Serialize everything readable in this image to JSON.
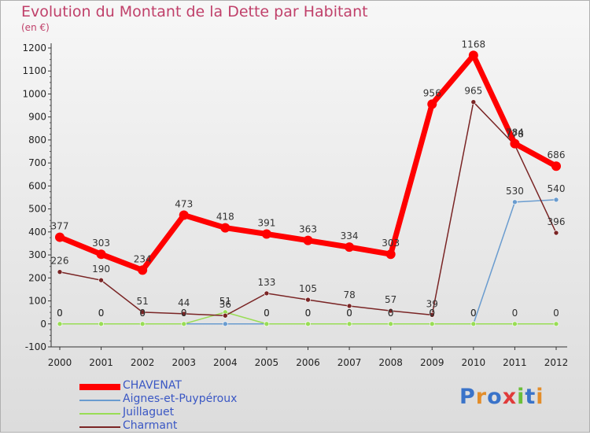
{
  "chart_data": {
    "type": "line",
    "title": "Evolution du Montant de la Dette par Habitant",
    "subtitle": "(en €)",
    "x": [
      2000,
      2001,
      2002,
      2003,
      2004,
      2005,
      2006,
      2007,
      2008,
      2009,
      2010,
      2011,
      2012
    ],
    "ylim": [
      -100,
      1200
    ],
    "yticks": [
      -100,
      0,
      100,
      200,
      300,
      400,
      500,
      600,
      700,
      800,
      900,
      1000,
      1100,
      1200
    ],
    "grid": false,
    "legend_position": "bottom-left",
    "series": [
      {
        "name": "CHAVENAT",
        "color": "#ff0000",
        "values": [
          377,
          303,
          234,
          473,
          418,
          391,
          363,
          334,
          303,
          956,
          1168,
          784,
          686
        ],
        "labels": [
          "377",
          "303",
          "234",
          "473",
          "418",
          "391",
          "363",
          "334",
          "303",
          "956",
          "1168",
          "784",
          "686"
        ]
      },
      {
        "name": "Aignes-et-Puypéroux",
        "color": "#6a9ccf",
        "values": [
          0,
          0,
          0,
          0,
          0,
          0,
          0,
          0,
          0,
          0,
          0,
          530,
          540
        ],
        "labels": [
          "0",
          "0",
          "0",
          "0",
          "",
          "0",
          "0",
          "0",
          "0",
          "0",
          "0",
          "530",
          "540"
        ]
      },
      {
        "name": "Juillaguet",
        "color": "#99dd55",
        "values": [
          0,
          0,
          0,
          0,
          51,
          0,
          0,
          0,
          0,
          0,
          0,
          0,
          0
        ],
        "labels": [
          "0",
          "0",
          "0",
          "0",
          "51",
          "0",
          "0",
          "0",
          "0",
          "0",
          "0",
          "0",
          "0"
        ]
      },
      {
        "name": "Charmant",
        "color": "#7a2525",
        "values": [
          226,
          190,
          51,
          44,
          36,
          133,
          105,
          78,
          57,
          39,
          965,
          778,
          396
        ],
        "labels": [
          "226",
          "190",
          "51",
          "44",
          "36",
          "133",
          "105",
          "78",
          "57",
          "39",
          "965",
          "778",
          "396"
        ]
      }
    ]
  },
  "logo": {
    "letters": [
      "P",
      "r",
      "o",
      "x",
      "i",
      "t",
      "i"
    ],
    "colors": [
      "#3a73c9",
      "#e38d2a",
      "#3a73c9",
      "#e03a3a",
      "#6bbf3a",
      "#3a73c9",
      "#e38d2a"
    ]
  }
}
